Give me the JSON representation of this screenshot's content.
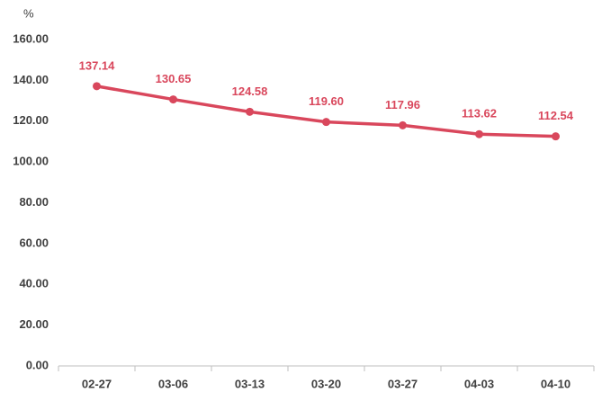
{
  "chart_data": {
    "type": "line",
    "y_label": "%",
    "categories": [
      "02-27",
      "03-06",
      "03-13",
      "03-20",
      "03-27",
      "04-03",
      "04-10"
    ],
    "values": [
      137.14,
      130.65,
      124.58,
      119.6,
      117.96,
      113.62,
      112.54
    ],
    "value_labels": [
      "137.14",
      "130.65",
      "124.58",
      "119.60",
      "117.96",
      "113.62",
      "112.54"
    ],
    "color": "#d9475c",
    "ylim": [
      0,
      160
    ],
    "yticks": [
      {
        "value": 0,
        "label": "0.00"
      },
      {
        "value": 20,
        "label": "20.00"
      },
      {
        "value": 40,
        "label": "40.00"
      },
      {
        "value": 60,
        "label": "60.00"
      },
      {
        "value": 80,
        "label": "80.00"
      },
      {
        "value": 100,
        "label": "100.00"
      },
      {
        "value": 120,
        "label": "120.00"
      },
      {
        "value": 140,
        "label": "140.00"
      },
      {
        "value": 160,
        "label": "160.00"
      }
    ],
    "grid": false
  }
}
